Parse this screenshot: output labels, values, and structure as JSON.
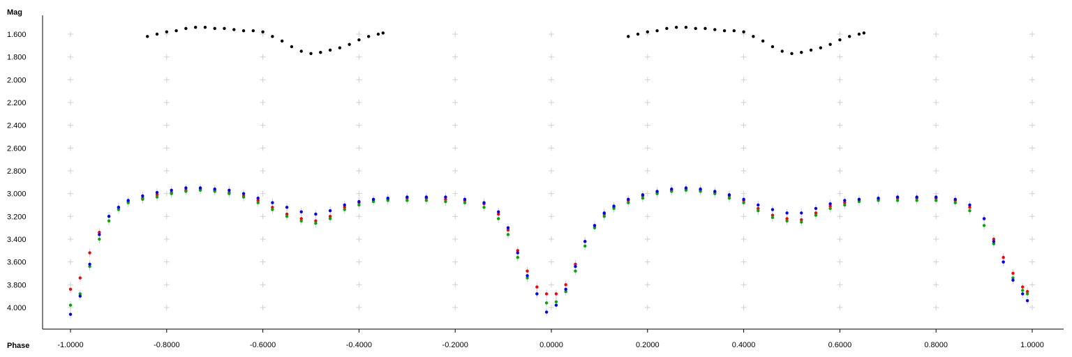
{
  "chart_data": {
    "type": "scatter",
    "ylabel": "Mag",
    "xlabel": "Phase",
    "xlim": [
      -1.0,
      1.0
    ],
    "ylim": [
      4.0,
      1.6
    ],
    "y_inverted": true,
    "grid": "plus-markers",
    "x_ticks": [
      "-1.0000",
      "-0.8000",
      "-0.6000",
      "-0.4000",
      "-0.2000",
      "0.0000",
      "0.2000",
      "0.4000",
      "0.6000",
      "0.8000",
      "1.0000"
    ],
    "y_ticks": [
      "1.600",
      "1.800",
      "2.000",
      "2.200",
      "2.400",
      "2.600",
      "2.800",
      "3.000",
      "3.200",
      "3.400",
      "3.600",
      "3.800",
      "4.000"
    ],
    "series": [
      {
        "color": "#000000",
        "points": [
          [
            -0.84,
            1.62
          ],
          [
            -0.82,
            1.6
          ],
          [
            -0.8,
            1.58
          ],
          [
            -0.78,
            1.57
          ],
          [
            -0.76,
            1.55
          ],
          [
            -0.74,
            1.54
          ],
          [
            -0.72,
            1.54
          ],
          [
            -0.7,
            1.55
          ],
          [
            -0.68,
            1.55
          ],
          [
            -0.66,
            1.56
          ],
          [
            -0.64,
            1.57
          ],
          [
            -0.62,
            1.57
          ],
          [
            -0.6,
            1.58
          ],
          [
            -0.58,
            1.62
          ],
          [
            -0.56,
            1.66
          ],
          [
            -0.54,
            1.71
          ],
          [
            -0.52,
            1.75
          ],
          [
            -0.5,
            1.77
          ],
          [
            -0.48,
            1.76
          ],
          [
            -0.46,
            1.74
          ],
          [
            -0.44,
            1.72
          ],
          [
            -0.42,
            1.69
          ],
          [
            -0.4,
            1.65
          ],
          [
            -0.38,
            1.62
          ],
          [
            -0.36,
            1.6
          ],
          [
            -0.35,
            1.59
          ],
          [
            0.16,
            1.62
          ],
          [
            0.18,
            1.6
          ],
          [
            0.2,
            1.58
          ],
          [
            0.22,
            1.57
          ],
          [
            0.24,
            1.55
          ],
          [
            0.26,
            1.54
          ],
          [
            0.28,
            1.54
          ],
          [
            0.3,
            1.55
          ],
          [
            0.32,
            1.55
          ],
          [
            0.34,
            1.56
          ],
          [
            0.36,
            1.57
          ],
          [
            0.38,
            1.57
          ],
          [
            0.4,
            1.58
          ],
          [
            0.42,
            1.62
          ],
          [
            0.44,
            1.66
          ],
          [
            0.46,
            1.71
          ],
          [
            0.48,
            1.75
          ],
          [
            0.5,
            1.77
          ],
          [
            0.52,
            1.76
          ],
          [
            0.54,
            1.74
          ],
          [
            0.56,
            1.72
          ],
          [
            0.58,
            1.69
          ],
          [
            0.6,
            1.65
          ],
          [
            0.62,
            1.62
          ],
          [
            0.64,
            1.6
          ],
          [
            0.65,
            1.59
          ]
        ]
      },
      {
        "color": "#ff0000",
        "points": [
          [
            -1.0,
            3.84
          ],
          [
            -0.98,
            3.74
          ],
          [
            -0.96,
            3.52
          ],
          [
            -0.94,
            3.34
          ],
          [
            -0.92,
            3.2
          ],
          [
            -0.9,
            3.12
          ],
          [
            -0.88,
            3.07
          ],
          [
            -0.85,
            3.04
          ],
          [
            -0.82,
            3.01
          ],
          [
            -0.79,
            2.99
          ],
          [
            -0.76,
            2.97
          ],
          [
            -0.73,
            2.96
          ],
          [
            -0.7,
            2.97
          ],
          [
            -0.67,
            2.99
          ],
          [
            -0.64,
            3.02
          ],
          [
            -0.61,
            3.06
          ],
          [
            -0.58,
            3.12
          ],
          [
            -0.55,
            3.18
          ],
          [
            -0.52,
            3.22
          ],
          [
            -0.49,
            3.24
          ],
          [
            -0.46,
            3.2
          ],
          [
            -0.43,
            3.12
          ],
          [
            -0.4,
            3.08
          ],
          [
            -0.37,
            3.06
          ],
          [
            -0.34,
            3.05
          ],
          [
            -0.3,
            3.04
          ],
          [
            -0.26,
            3.04
          ],
          [
            -0.22,
            3.05
          ],
          [
            -0.18,
            3.06
          ],
          [
            -0.14,
            3.09
          ],
          [
            -0.11,
            3.18
          ],
          [
            -0.09,
            3.32
          ],
          [
            -0.07,
            3.5
          ],
          [
            -0.05,
            3.68
          ],
          [
            -0.03,
            3.82
          ],
          [
            -0.01,
            3.88
          ],
          [
            0.01,
            3.88
          ],
          [
            0.03,
            3.8
          ],
          [
            0.05,
            3.62
          ],
          [
            0.07,
            3.42
          ],
          [
            0.09,
            3.28
          ],
          [
            0.11,
            3.18
          ],
          [
            0.13,
            3.12
          ],
          [
            0.16,
            3.06
          ],
          [
            0.19,
            3.02
          ],
          [
            0.22,
            2.99
          ],
          [
            0.25,
            2.97
          ],
          [
            0.28,
            2.96
          ],
          [
            0.31,
            2.97
          ],
          [
            0.34,
            2.99
          ],
          [
            0.37,
            3.02
          ],
          [
            0.4,
            3.06
          ],
          [
            0.43,
            3.13
          ],
          [
            0.46,
            3.19
          ],
          [
            0.49,
            3.22
          ],
          [
            0.52,
            3.23
          ],
          [
            0.55,
            3.17
          ],
          [
            0.58,
            3.11
          ],
          [
            0.61,
            3.08
          ],
          [
            0.64,
            3.06
          ],
          [
            0.68,
            3.05
          ],
          [
            0.72,
            3.04
          ],
          [
            0.76,
            3.04
          ],
          [
            0.8,
            3.04
          ],
          [
            0.84,
            3.06
          ],
          [
            0.87,
            3.12
          ],
          [
            0.9,
            3.22
          ],
          [
            0.92,
            3.4
          ],
          [
            0.94,
            3.56
          ],
          [
            0.96,
            3.7
          ],
          [
            0.98,
            3.82
          ],
          [
            0.99,
            3.86
          ]
        ]
      },
      {
        "color": "#00aa00",
        "points": [
          [
            -1.0,
            3.98
          ],
          [
            -0.98,
            3.88
          ],
          [
            -0.96,
            3.64
          ],
          [
            -0.94,
            3.4
          ],
          [
            -0.92,
            3.24
          ],
          [
            -0.9,
            3.14
          ],
          [
            -0.88,
            3.08
          ],
          [
            -0.85,
            3.05
          ],
          [
            -0.82,
            3.03
          ],
          [
            -0.79,
            3.0
          ],
          [
            -0.76,
            2.98
          ],
          [
            -0.73,
            2.97
          ],
          [
            -0.7,
            2.98
          ],
          [
            -0.67,
            3.0
          ],
          [
            -0.64,
            3.03
          ],
          [
            -0.61,
            3.08
          ],
          [
            -0.58,
            3.14
          ],
          [
            -0.55,
            3.2
          ],
          [
            -0.52,
            3.24
          ],
          [
            -0.49,
            3.26
          ],
          [
            -0.46,
            3.22
          ],
          [
            -0.43,
            3.14
          ],
          [
            -0.4,
            3.1
          ],
          [
            -0.37,
            3.07
          ],
          [
            -0.34,
            3.06
          ],
          [
            -0.3,
            3.06
          ],
          [
            -0.26,
            3.06
          ],
          [
            -0.22,
            3.07
          ],
          [
            -0.18,
            3.08
          ],
          [
            -0.14,
            3.12
          ],
          [
            -0.11,
            3.22
          ],
          [
            -0.09,
            3.36
          ],
          [
            -0.07,
            3.56
          ],
          [
            -0.05,
            3.74
          ],
          [
            -0.03,
            3.88
          ],
          [
            -0.01,
            3.96
          ],
          [
            0.01,
            3.95
          ],
          [
            0.03,
            3.86
          ],
          [
            0.05,
            3.68
          ],
          [
            0.07,
            3.46
          ],
          [
            0.09,
            3.3
          ],
          [
            0.11,
            3.2
          ],
          [
            0.13,
            3.13
          ],
          [
            0.16,
            3.08
          ],
          [
            0.19,
            3.04
          ],
          [
            0.22,
            3.0
          ],
          [
            0.25,
            2.98
          ],
          [
            0.28,
            2.97
          ],
          [
            0.31,
            2.98
          ],
          [
            0.34,
            3.0
          ],
          [
            0.37,
            3.04
          ],
          [
            0.4,
            3.08
          ],
          [
            0.43,
            3.15
          ],
          [
            0.46,
            3.21
          ],
          [
            0.49,
            3.24
          ],
          [
            0.52,
            3.25
          ],
          [
            0.55,
            3.19
          ],
          [
            0.58,
            3.13
          ],
          [
            0.61,
            3.1
          ],
          [
            0.64,
            3.07
          ],
          [
            0.68,
            3.06
          ],
          [
            0.72,
            3.06
          ],
          [
            0.76,
            3.06
          ],
          [
            0.8,
            3.06
          ],
          [
            0.84,
            3.08
          ],
          [
            0.87,
            3.15
          ],
          [
            0.9,
            3.28
          ],
          [
            0.92,
            3.44
          ],
          [
            0.94,
            3.6
          ],
          [
            0.96,
            3.74
          ],
          [
            0.98,
            3.85
          ],
          [
            0.99,
            3.88
          ]
        ]
      },
      {
        "color": "#0000ff",
        "points": [
          [
            -1.0,
            4.06
          ],
          [
            -0.98,
            3.9
          ],
          [
            -0.96,
            3.62
          ],
          [
            -0.94,
            3.36
          ],
          [
            -0.92,
            3.2
          ],
          [
            -0.9,
            3.12
          ],
          [
            -0.88,
            3.06
          ],
          [
            -0.85,
            3.02
          ],
          [
            -0.82,
            2.99
          ],
          [
            -0.79,
            2.97
          ],
          [
            -0.76,
            2.95
          ],
          [
            -0.73,
            2.95
          ],
          [
            -0.7,
            2.96
          ],
          [
            -0.67,
            2.97
          ],
          [
            -0.64,
            3.0
          ],
          [
            -0.61,
            3.04
          ],
          [
            -0.58,
            3.08
          ],
          [
            -0.55,
            3.12
          ],
          [
            -0.52,
            3.16
          ],
          [
            -0.49,
            3.18
          ],
          [
            -0.46,
            3.15
          ],
          [
            -0.43,
            3.1
          ],
          [
            -0.4,
            3.07
          ],
          [
            -0.37,
            3.05
          ],
          [
            -0.34,
            3.04
          ],
          [
            -0.3,
            3.03
          ],
          [
            -0.26,
            3.03
          ],
          [
            -0.22,
            3.03
          ],
          [
            -0.18,
            3.05
          ],
          [
            -0.14,
            3.08
          ],
          [
            -0.11,
            3.16
          ],
          [
            -0.09,
            3.3
          ],
          [
            -0.07,
            3.52
          ],
          [
            -0.05,
            3.72
          ],
          [
            -0.03,
            3.88
          ],
          [
            -0.01,
            4.04
          ],
          [
            0.01,
            3.98
          ],
          [
            0.03,
            3.84
          ],
          [
            0.05,
            3.64
          ],
          [
            0.07,
            3.42
          ],
          [
            0.09,
            3.28
          ],
          [
            0.11,
            3.17
          ],
          [
            0.13,
            3.11
          ],
          [
            0.16,
            3.05
          ],
          [
            0.19,
            3.01
          ],
          [
            0.22,
            2.98
          ],
          [
            0.25,
            2.96
          ],
          [
            0.28,
            2.95
          ],
          [
            0.31,
            2.96
          ],
          [
            0.34,
            2.98
          ],
          [
            0.37,
            3.01
          ],
          [
            0.4,
            3.05
          ],
          [
            0.43,
            3.1
          ],
          [
            0.46,
            3.14
          ],
          [
            0.49,
            3.17
          ],
          [
            0.52,
            3.17
          ],
          [
            0.55,
            3.13
          ],
          [
            0.58,
            3.09
          ],
          [
            0.61,
            3.06
          ],
          [
            0.64,
            3.05
          ],
          [
            0.68,
            3.04
          ],
          [
            0.72,
            3.03
          ],
          [
            0.76,
            3.03
          ],
          [
            0.8,
            3.03
          ],
          [
            0.84,
            3.05
          ],
          [
            0.87,
            3.1
          ],
          [
            0.9,
            3.22
          ],
          [
            0.92,
            3.42
          ],
          [
            0.94,
            3.6
          ],
          [
            0.96,
            3.76
          ],
          [
            0.98,
            3.88
          ],
          [
            0.99,
            3.94
          ]
        ]
      }
    ]
  }
}
